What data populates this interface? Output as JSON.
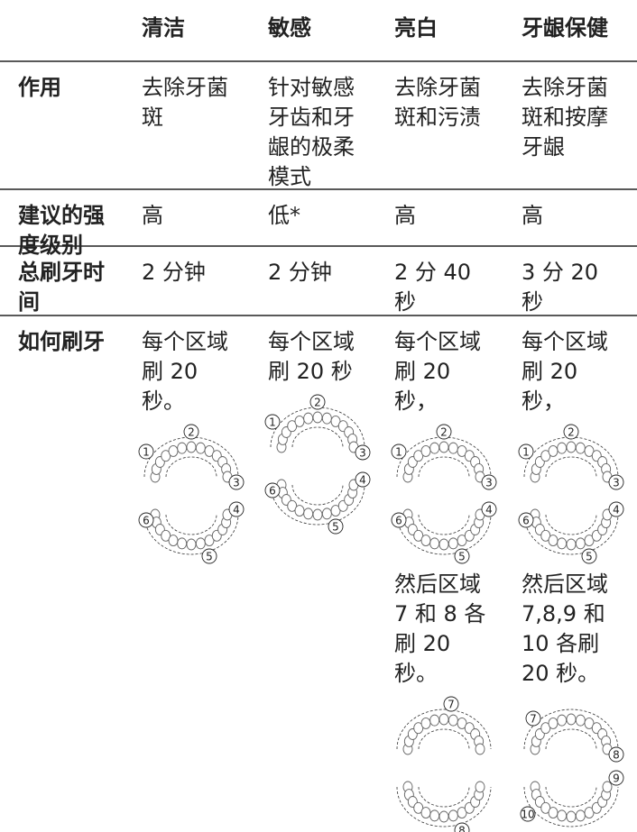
{
  "table": {
    "columns": [
      "清洁",
      "敏感",
      "亮白",
      "牙龈保健"
    ],
    "rows": [
      {
        "label": [
          "作用"
        ],
        "cells": [
          {
            "blocks": [
              {
                "lines": [
                  "去除牙菌",
                  "斑"
                ]
              }
            ]
          },
          {
            "blocks": [
              {
                "lines": [
                  "针对敏感",
                  "牙齿和牙",
                  "龈的极柔",
                  "模式"
                ]
              }
            ]
          },
          {
            "blocks": [
              {
                "lines": [
                  "去除牙菌",
                  "斑和污渍"
                ]
              }
            ]
          },
          {
            "blocks": [
              {
                "lines": [
                  "去除牙菌",
                  "斑和按摩",
                  "牙龈"
                ]
              }
            ]
          }
        ]
      },
      {
        "label": [
          "建议的强",
          "度级别"
        ],
        "cells": [
          {
            "blocks": [
              {
                "lines": [
                  "高"
                ]
              }
            ]
          },
          {
            "blocks": [
              {
                "lines": [
                  "低*"
                ]
              }
            ]
          },
          {
            "blocks": [
              {
                "lines": [
                  "高"
                ]
              }
            ]
          },
          {
            "blocks": [
              {
                "lines": [
                  "高"
                ]
              }
            ]
          }
        ]
      },
      {
        "label": [
          "总刷牙时",
          "间"
        ],
        "cells": [
          {
            "blocks": [
              {
                "lines": [
                  "2 分钟"
                ]
              }
            ]
          },
          {
            "blocks": [
              {
                "lines": [
                  "2 分钟"
                ]
              }
            ]
          },
          {
            "blocks": [
              {
                "lines": [
                  "2 分 40",
                  "秒"
                ]
              }
            ]
          },
          {
            "blocks": [
              {
                "lines": [
                  "3 分 20",
                  "秒"
                ]
              }
            ]
          }
        ]
      },
      {
        "label": [
          "如何刷牙"
        ],
        "cells": [
          {
            "blocks": [
              {
                "lines": [
                  "每个区域",
                  "刷 20",
                  "秒。"
                ]
              },
              {
                "upper": [
                  "1",
                  "2",
                  "3"
                ]
              },
              {
                "lower": [
                  "4",
                  "5",
                  "6"
                ]
              }
            ]
          },
          {
            "blocks": [
              {
                "lines": [
                  "每个区域",
                  "刷 20 秒"
                ]
              },
              {
                "upper": [
                  "1",
                  "2",
                  "3"
                ]
              },
              {
                "lower": [
                  "4",
                  "5",
                  "6"
                ]
              }
            ]
          },
          {
            "blocks": [
              {
                "lines": [
                  "每个区域",
                  "刷 20",
                  "秒，"
                ]
              },
              {
                "upper": [
                  "1",
                  "2",
                  "3"
                ]
              },
              {
                "lower": [
                  "4",
                  "5",
                  "6"
                ]
              },
              {
                "lines": [
                  "然后区域",
                  "7 和 8 各",
                  "刷 20",
                  "秒。"
                ]
              },
              {
                "upper": [
                  "7"
                ]
              },
              {
                "lower": [
                  "8"
                ]
              }
            ]
          },
          {
            "blocks": [
              {
                "lines": [
                  "每个区域",
                  "刷 20",
                  "秒，"
                ]
              },
              {
                "upper": [
                  "1",
                  "2",
                  "3"
                ]
              },
              {
                "lower": [
                  "4",
                  "5",
                  "6"
                ]
              },
              {
                "lines": [
                  "然后区域",
                  "7,8,9 和",
                  "10 各刷",
                  "20 秒。"
                ]
              },
              {
                "upper": [
                  "7",
                  "8"
                ]
              },
              {
                "lower": [
                  "9",
                  "10"
                ]
              }
            ]
          }
        ]
      }
    ]
  }
}
